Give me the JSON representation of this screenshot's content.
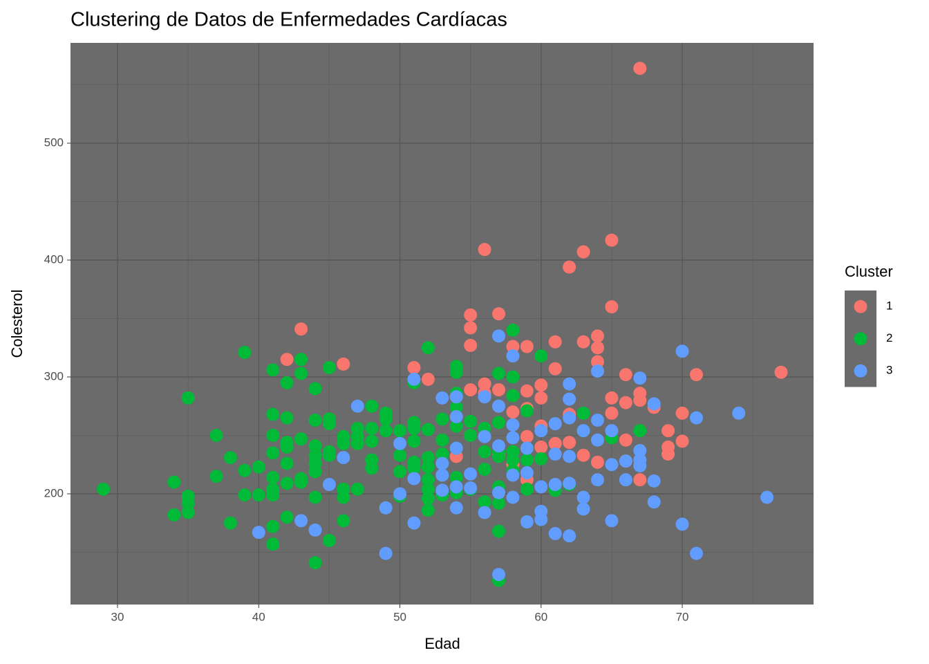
{
  "chart_data": {
    "type": "scatter",
    "title": "Clustering de Datos de Enfermedades Cardíacas",
    "x_label": "Edad",
    "y_label": "Colesterol",
    "legend_title": "Cluster",
    "xlim": [
      26.67,
      79.3
    ],
    "ylim": [
      105.3,
      585.8
    ],
    "xticks": [
      30,
      40,
      50,
      60,
      70
    ],
    "yticks": [
      200,
      300,
      400,
      500
    ],
    "x_minor_grid": [
      35,
      45,
      55,
      65,
      75
    ],
    "y_minor_grid": [
      150,
      250,
      350,
      450,
      550
    ],
    "grid": true,
    "panel_color": "#6b6b6b",
    "legend_position": "right",
    "series": [
      {
        "name": "1",
        "color": "#F8766D",
        "x": [
          67,
          56,
          65,
          63,
          62,
          65,
          43,
          55,
          55,
          55,
          57,
          42,
          46,
          51,
          52,
          58,
          59,
          61,
          64,
          64,
          63,
          61,
          64,
          66,
          71,
          77,
          56,
          57,
          55,
          60,
          59,
          54,
          60,
          58,
          59,
          65,
          67,
          67,
          66,
          68,
          70,
          65,
          60,
          59,
          62,
          61,
          62,
          60,
          63,
          64,
          66,
          66,
          67,
          69,
          69,
          69,
          70,
          58,
          59,
          57,
          54,
          56,
          57
        ],
        "y": [
          564,
          409,
          417,
          407,
          394,
          360,
          341,
          353,
          342,
          327,
          354,
          315,
          311,
          308,
          298,
          326,
          326,
          330,
          335,
          325,
          330,
          307,
          313,
          302,
          302,
          304,
          294,
          289,
          289,
          293,
          288,
          283,
          282,
          270,
          273,
          282,
          286,
          280,
          278,
          274,
          269,
          269,
          258,
          249,
          268,
          243,
          244,
          240,
          233,
          227,
          246,
          228,
          212,
          254,
          240,
          234,
          245,
          225,
          212,
          233,
          232,
          286,
          275
        ]
      },
      {
        "name": "2",
        "color": "#00BA38",
        "x": [
          29,
          34,
          34,
          35,
          35,
          35,
          35,
          37,
          37,
          38,
          38,
          39,
          39,
          39,
          40,
          40,
          41,
          41,
          41,
          41,
          41,
          41,
          41,
          41,
          41,
          42,
          42,
          42,
          42,
          42,
          42,
          42,
          43,
          43,
          43,
          43,
          43,
          44,
          44,
          44,
          44,
          44,
          44,
          44,
          44,
          45,
          45,
          45,
          45,
          45,
          45,
          46,
          46,
          46,
          46,
          46,
          47,
          47,
          47,
          47,
          48,
          48,
          48,
          48,
          48,
          49,
          49,
          49,
          50,
          50,
          50,
          50,
          50,
          51,
          51,
          51,
          51,
          51,
          51,
          52,
          52,
          52,
          52,
          52,
          52,
          52,
          52,
          53,
          53,
          53,
          53,
          53,
          53,
          54,
          54,
          54,
          54,
          54,
          54,
          54,
          54,
          55,
          55,
          55,
          56,
          56,
          56,
          56,
          57,
          57,
          57,
          57,
          57,
          57,
          57,
          57,
          58,
          58,
          58,
          58,
          58,
          58,
          59,
          59,
          59,
          59,
          60,
          60,
          61,
          62,
          63,
          63,
          65,
          67
        ],
        "y": [
          204,
          210,
          182,
          282,
          198,
          192,
          184,
          250,
          215,
          231,
          175,
          321,
          220,
          199,
          223,
          199,
          306,
          268,
          250,
          235,
          214,
          204,
          199,
          172,
          157,
          295,
          265,
          244,
          240,
          226,
          209,
          180,
          315,
          303,
          247,
          213,
          210,
          290,
          263,
          241,
          233,
          226,
          219,
          197,
          141,
          308,
          264,
          260,
          236,
          233,
          160,
          249,
          243,
          204,
          197,
          177,
          256,
          249,
          243,
          204,
          275,
          256,
          245,
          229,
          222,
          269,
          264,
          254,
          254,
          243,
          233,
          219,
          198,
          261,
          256,
          245,
          227,
          222,
          295,
          325,
          255,
          231,
          223,
          212,
          204,
          196,
          186,
          264,
          246,
          234,
          226,
          216,
          199,
          309,
          304,
          286,
          274,
          258,
          239,
          214,
          201,
          262,
          250,
          204,
          256,
          236,
          221,
          193,
          303,
          261,
          236,
          232,
          206,
          192,
          168,
          126,
          340,
          300,
          284,
          236,
          229,
          220,
          271,
          239,
          229,
          204,
          318,
          230,
          203,
          208,
          269,
          254,
          248,
          254
        ]
      },
      {
        "name": "3",
        "color": "#619CFF",
        "x": [
          40,
          43,
          44,
          45,
          46,
          47,
          49,
          49,
          50,
          50,
          51,
          51,
          51,
          53,
          53,
          53,
          53,
          54,
          54,
          54,
          54,
          54,
          55,
          55,
          56,
          56,
          56,
          57,
          57,
          57,
          57,
          57,
          58,
          58,
          58,
          58,
          58,
          59,
          59,
          59,
          60,
          60,
          60,
          60,
          61,
          61,
          61,
          61,
          62,
          62,
          62,
          62,
          62,
          62,
          63,
          63,
          63,
          64,
          64,
          64,
          64,
          65,
          65,
          65,
          66,
          66,
          67,
          67,
          67,
          67,
          68,
          68,
          68,
          70,
          70,
          71,
          71,
          74,
          76
        ],
        "y": [
          167,
          177,
          169,
          208,
          231,
          275,
          188,
          149,
          243,
          200,
          298,
          213,
          175,
          282,
          226,
          216,
          203,
          283,
          266,
          239,
          206,
          188,
          217,
          205,
          283,
          249,
          184,
          335,
          275,
          241,
          201,
          131,
          318,
          259,
          248,
          216,
          197,
          239,
          218,
          176,
          254,
          206,
          185,
          178,
          260,
          234,
          208,
          166,
          294,
          281,
          265,
          232,
          209,
          164,
          254,
          197,
          187,
          305,
          263,
          246,
          212,
          254,
          225,
          177,
          212,
          228,
          299,
          237,
          229,
          224,
          277,
          211,
          193,
          322,
          174,
          265,
          149,
          269,
          197
        ]
      }
    ]
  }
}
